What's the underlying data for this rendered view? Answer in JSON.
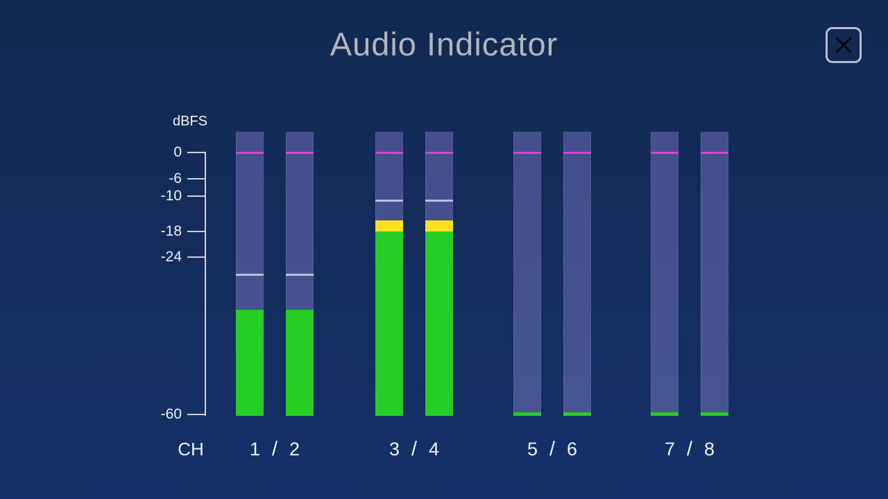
{
  "window": {
    "title": "Audio Indicator"
  },
  "scale": {
    "unit": "dBFS",
    "max_db": 0,
    "min_db": -60,
    "ticks": [
      {
        "db": 0,
        "label": "0"
      },
      {
        "db": -6,
        "label": "-6"
      },
      {
        "db": -10,
        "label": "-10"
      },
      {
        "db": -18,
        "label": "-18"
      },
      {
        "db": -24,
        "label": "-24"
      },
      {
        "db": -60,
        "label": "-60"
      }
    ]
  },
  "meters": {
    "row_label": "CH",
    "zero_marker_db": 0,
    "green_zone_top_db": -18,
    "pairs": [
      {
        "left_label": "1",
        "separator": "/",
        "right_label": "2",
        "channels": [
          {
            "name": "ch1",
            "level_db": -36,
            "peak_db": -28
          },
          {
            "name": "ch2",
            "level_db": -36,
            "peak_db": -28
          }
        ]
      },
      {
        "left_label": "3",
        "separator": "/",
        "right_label": "4",
        "channels": [
          {
            "name": "ch3",
            "level_db": -15.5,
            "peak_db": -11
          },
          {
            "name": "ch4",
            "level_db": -15.5,
            "peak_db": -11
          }
        ]
      },
      {
        "left_label": "5",
        "separator": "/",
        "right_label": "6",
        "channels": [
          {
            "name": "ch5",
            "level_db": -59.5,
            "peak_db": null
          },
          {
            "name": "ch6",
            "level_db": -59.5,
            "peak_db": null
          }
        ]
      },
      {
        "left_label": "7",
        "separator": "/",
        "right_label": "8",
        "channels": [
          {
            "name": "ch7",
            "level_db": -59.5,
            "peak_db": null
          },
          {
            "name": "ch8",
            "level_db": -59.5,
            "peak_db": null
          }
        ]
      }
    ]
  },
  "colors": {
    "background_top": "#122951",
    "background_bottom": "#143068",
    "bar_background": "#475492",
    "level_green": "#25cd25",
    "level_yellow": "#fae01e",
    "zero_line_magenta": "#e23ce2",
    "peak_hold_line": "#bac2da",
    "scale_line": "#cdd2de",
    "text": "#f0f3f8",
    "title_text": "#b1b5bc",
    "close_button": "#b6c0d0"
  }
}
